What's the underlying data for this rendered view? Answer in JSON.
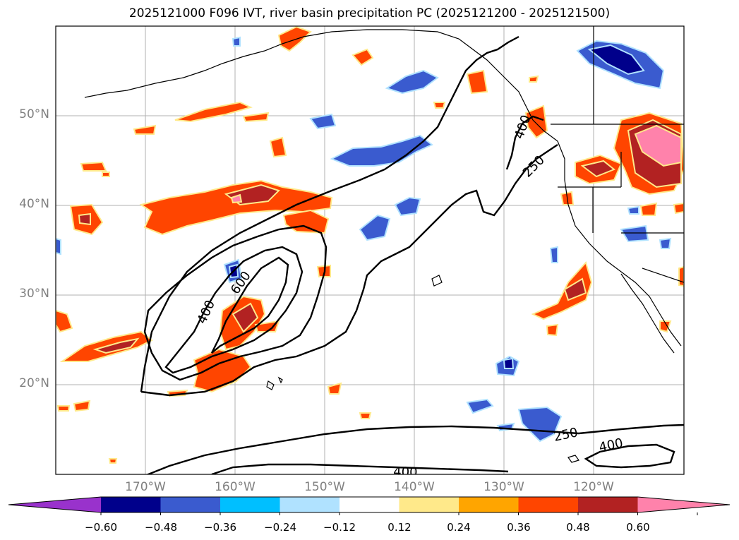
{
  "title": "2025121000 F096 IVT, river basin precipitation PC (2025121200 - 2025121500)",
  "map": {
    "lat_labels": [
      "50°N",
      "40°N",
      "30°N",
      "20°N"
    ],
    "lon_labels": [
      "170°W",
      "160°W",
      "150°W",
      "140°W",
      "130°W",
      "120°W"
    ],
    "lon_range": [
      -180,
      -110
    ],
    "lat_range": [
      10,
      60
    ],
    "ivt_contour_levels": [
      250,
      400,
      600
    ],
    "contour_labels": [
      "250",
      "400",
      "600",
      "400",
      "250",
      "400",
      "400"
    ],
    "colors": {
      "grid": "#b0b0b0",
      "contour": "#000000",
      "coast": "#000000"
    }
  },
  "colorbar": {
    "ticks": [
      "−0.60",
      "−0.48",
      "−0.36",
      "−0.24",
      "−0.12",
      "0.12",
      "0.24",
      "0.36",
      "0.48",
      "0.60"
    ],
    "bins": [
      {
        "color": "#9932cc"
      },
      {
        "color": "#00008b"
      },
      {
        "color": "#3a5bcf"
      },
      {
        "color": "#00bfff"
      },
      {
        "color": "#b0e2ff"
      },
      {
        "color": "#ffffff"
      },
      {
        "color": "#ffe98a"
      },
      {
        "color": "#ffa500"
      },
      {
        "color": "#ff4500"
      },
      {
        "color": "#b22222"
      },
      {
        "color": "#ff82ab"
      }
    ]
  }
}
